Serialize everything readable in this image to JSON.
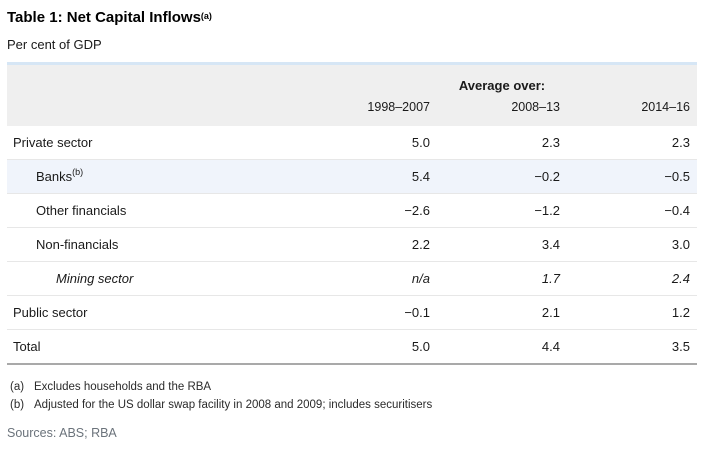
{
  "title": {
    "text": "Table 1: Net Capital Inflows",
    "marker": "(a)"
  },
  "subtitle": "Per cent of GDP",
  "table": {
    "group_header": "Average over:",
    "columns": [
      "1998–2007",
      "2008–13",
      "2014–16"
    ],
    "rows": [
      {
        "label": "Private sector",
        "marker": "",
        "indent": 0,
        "italic": false,
        "highlight": false,
        "values": [
          "5.0",
          "2.3",
          "2.3"
        ]
      },
      {
        "label": "Banks",
        "marker": "(b)",
        "indent": 1,
        "italic": false,
        "highlight": true,
        "values": [
          "5.4",
          "−0.2",
          "−0.5"
        ]
      },
      {
        "label": "Other financials",
        "marker": "",
        "indent": 1,
        "italic": false,
        "highlight": false,
        "values": [
          "−2.6",
          "−1.2",
          "−0.4"
        ]
      },
      {
        "label": "Non-financials",
        "marker": "",
        "indent": 1,
        "italic": false,
        "highlight": false,
        "values": [
          "2.2",
          "3.4",
          "3.0"
        ]
      },
      {
        "label": "Mining sector",
        "marker": "",
        "indent": 2,
        "italic": true,
        "highlight": false,
        "values": [
          "n/a",
          "1.7",
          "2.4"
        ]
      },
      {
        "label": "Public sector",
        "marker": "",
        "indent": 0,
        "italic": false,
        "highlight": false,
        "values": [
          "−0.1",
          "2.1",
          "1.2"
        ]
      },
      {
        "label": "Total",
        "marker": "",
        "indent": 0,
        "italic": false,
        "highlight": false,
        "values": [
          "5.0",
          "4.4",
          "3.5"
        ]
      }
    ]
  },
  "footnotes": [
    {
      "marker": "(a)",
      "text": "Excludes households and the RBA"
    },
    {
      "marker": "(b)",
      "text": "Adjusted for the US dollar swap facility in 2008 and 2009; includes securitisers"
    }
  ],
  "sources": "Sources: ABS; RBA",
  "colors": {
    "table_top_accent": "#d6e6f5",
    "header_bg": "#efefef",
    "highlight_row_bg": "#f0f4fb",
    "row_divider": "#e7e7e7",
    "table_bottom_border": "#a9a9a9",
    "text": "#1a1a1a",
    "muted_text": "#6b737b"
  },
  "chart_data": {
    "type": "table",
    "title": "Table 1: Net Capital Inflows (a)",
    "subtitle": "Per cent of GDP",
    "group_header": "Average over:",
    "columns": [
      "1998-2007",
      "2008-13",
      "2014-16"
    ],
    "rows": [
      {
        "label": "Private sector",
        "values": [
          5.0,
          2.3,
          2.3
        ]
      },
      {
        "label": "Banks (b)",
        "values": [
          5.4,
          -0.2,
          -0.5
        ]
      },
      {
        "label": "Other financials",
        "values": [
          -2.6,
          -1.2,
          -0.4
        ]
      },
      {
        "label": "Non-financials",
        "values": [
          2.2,
          3.4,
          3.0
        ]
      },
      {
        "label": "Mining sector",
        "values": [
          null,
          1.7,
          2.4
        ],
        "note": "first value shown as n/a, row italic"
      },
      {
        "label": "Public sector",
        "values": [
          -0.1,
          2.1,
          1.2
        ]
      },
      {
        "label": "Total",
        "values": [
          5.0,
          4.4,
          3.5
        ]
      }
    ],
    "footnotes": [
      "(a) Excludes households and the RBA",
      "(b) Adjusted for the US dollar swap facility in 2008 and 2009; includes securitisers"
    ],
    "sources": "Sources: ABS; RBA"
  }
}
